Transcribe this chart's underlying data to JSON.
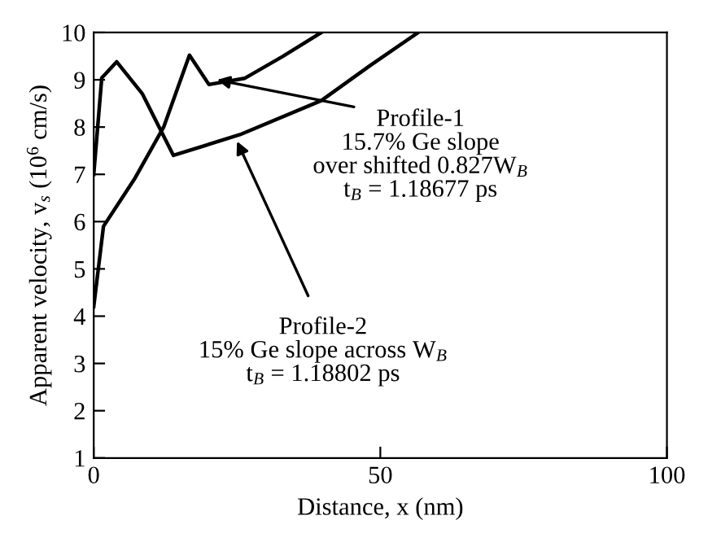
{
  "chart_data": {
    "type": "line",
    "xlabel": "Distance, x (nm)",
    "ylabel": "Apparent velocity, v$_{s}$ (10$^{6}$ cm/s)",
    "xlim": [
      0,
      100
    ],
    "ylim": [
      1,
      10
    ],
    "xticks": [
      0,
      50,
      100
    ],
    "yticks": [
      1,
      2,
      3,
      4,
      5,
      6,
      7,
      8,
      9,
      10
    ],
    "grid": false,
    "legend": false,
    "marker": "none",
    "line_style": "solid",
    "series": [
      {
        "color": "#000000",
        "x": [
          0,
          1.7,
          7.1,
          12.2,
          16.7,
          20.1,
          26.3,
          32.9,
          39.7
        ],
        "values": [
          4.2,
          5.9,
          6.9,
          8.0,
          9.52,
          8.9,
          9.03,
          9.49,
          10
        ]
      },
      {
        "color": "#000000",
        "x": [
          0,
          1.4,
          4,
          8.5,
          13.9,
          25.5,
          39.7,
          48.2,
          56.6
        ],
        "values": [
          7.0,
          9.04,
          9.38,
          8.7,
          7.4,
          7.84,
          8.56,
          9.3,
          10
        ]
      }
    ],
    "annotations": [
      {
        "text": "Profile-1",
        "x": 21.5,
        "y": 9.0
      },
      "15.7% Ge slope",
      "over shifted 0.827W$_{B}$",
      "t$_{B}$ = 1.18677 ps",
      {
        "text": "Profile-2",
        "x": 25,
        "y": 7.7
      },
      "15% Ge slope across W$_{B}$",
      "t$_{B}$ = 1.18802 ps"
    ]
  }
}
